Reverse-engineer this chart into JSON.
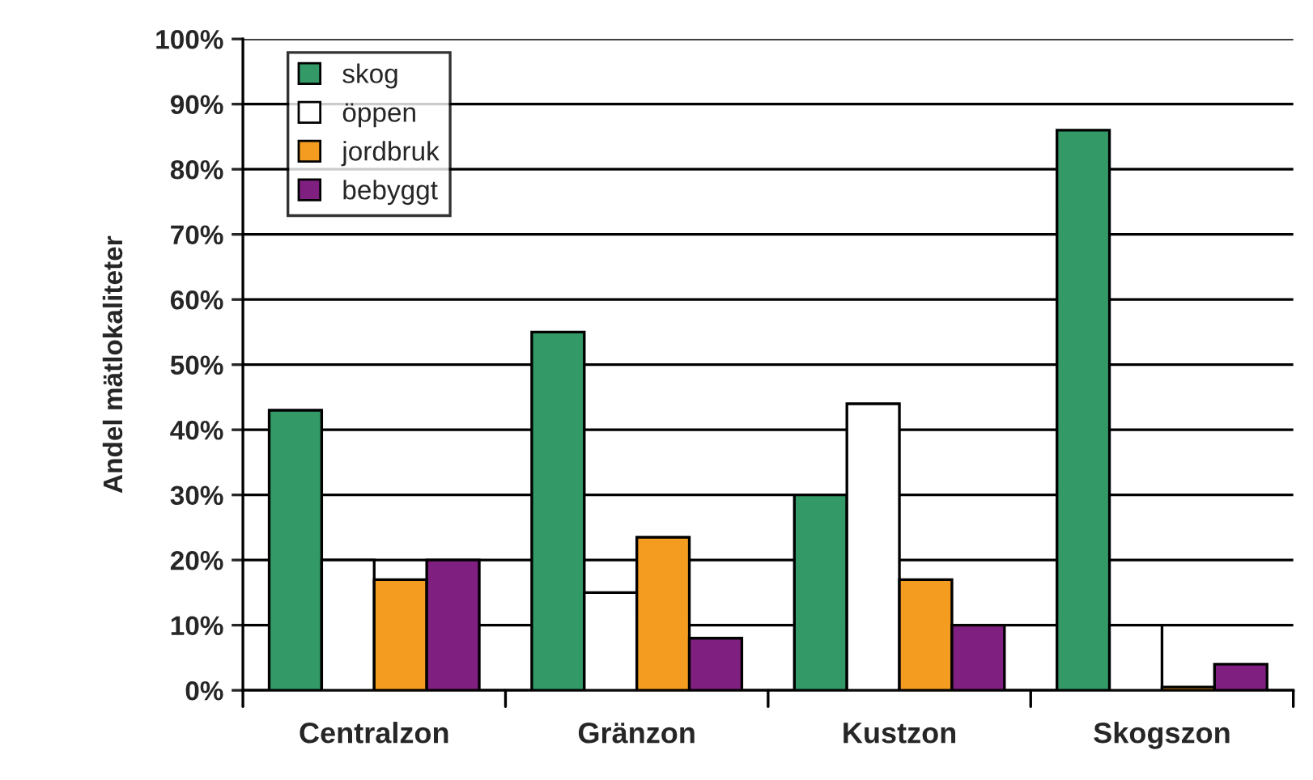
{
  "chart_data": {
    "type": "bar",
    "ylabel": "Andel mätlokaliteter",
    "categories": [
      "Centralzon",
      "Gränzon",
      "Kustzon",
      "Skogszon"
    ],
    "series": [
      {
        "name": "skog",
        "color": "#339966",
        "values": [
          43,
          55,
          30,
          86
        ]
      },
      {
        "name": "öppen",
        "color": "#ffffff",
        "values": [
          20,
          15,
          44,
          10
        ]
      },
      {
        "name": "jordbruk",
        "color": "#f39c1f",
        "values": [
          17,
          23.5,
          17,
          0.5
        ]
      },
      {
        "name": "bebyggt",
        "color": "#7f1f7f",
        "values": [
          20,
          8,
          10,
          4
        ]
      }
    ],
    "ylim": [
      0,
      100
    ],
    "yticks": [
      {
        "value": 0,
        "label": "0%"
      },
      {
        "value": 10,
        "label": "10%"
      },
      {
        "value": 20,
        "label": "20%"
      },
      {
        "value": 30,
        "label": "30%"
      },
      {
        "value": 40,
        "label": "40%"
      },
      {
        "value": 50,
        "label": "50%"
      },
      {
        "value": 60,
        "label": "60%"
      },
      {
        "value": 70,
        "label": "70%"
      },
      {
        "value": 80,
        "label": "80%"
      },
      {
        "value": 90,
        "label": "90%"
      },
      {
        "value": 100,
        "label": "100%"
      }
    ],
    "grid": "y",
    "legend": "top left"
  }
}
